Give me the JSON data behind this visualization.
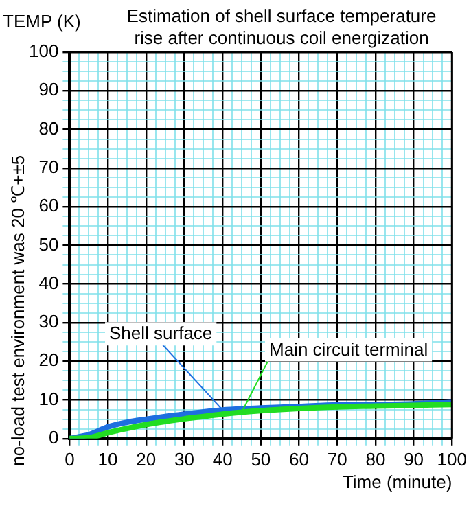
{
  "chart_data": {
    "type": "line",
    "title": [
      "Estimation of shell surface temperature",
      "rise after continuous coil energization"
    ],
    "ylabel": "TEMP (K)",
    "xlabel": "Time (minute)",
    "annotations": [
      "no-load test environment was 20 ℃+±5"
    ],
    "x": [
      0,
      5,
      10,
      15,
      20,
      25,
      30,
      35,
      40,
      45,
      50,
      60,
      70,
      80,
      90,
      100
    ],
    "series": [
      {
        "name": "Shell surface",
        "color": "#1e6fe0",
        "values": [
          0,
          1,
          3,
          4.2,
          5,
          5.7,
          6.3,
          6.9,
          7.4,
          7.7,
          7.9,
          8.3,
          8.7,
          8.8,
          9,
          9.5
        ]
      },
      {
        "name": "Main circuit terminal",
        "color": "#22dd22",
        "values": [
          0,
          0.2,
          1.5,
          2.6,
          3.6,
          4.4,
          5.1,
          5.7,
          6.3,
          6.8,
          7.2,
          7.8,
          8.2,
          8.4,
          8.6,
          8.8
        ]
      }
    ],
    "xlim": [
      0,
      100
    ],
    "ylim": [
      0,
      100
    ],
    "xticks": [
      0,
      {
        "value": 2.5,
        "label": null
      },
      {
        "value": 5,
        "label": null
      },
      {
        "value": 7.5,
        "label": null
      },
      10,
      {
        "value": 12.5,
        "label": null
      },
      {
        "value": 15,
        "label": null
      },
      {
        "value": 17.5,
        "label": null
      },
      20,
      {
        "value": 22.5,
        "label": null
      },
      {
        "value": 25,
        "label": null
      },
      {
        "value": 27.5,
        "label": null
      },
      30,
      {
        "value": 32.5,
        "label": null
      },
      {
        "value": 35,
        "label": null
      },
      {
        "value": 37.5,
        "label": null
      },
      40,
      {
        "value": 42.5,
        "label": null
      },
      {
        "value": 45,
        "label": null
      },
      {
        "value": 47.5,
        "label": null
      },
      50,
      {
        "value": 52.5,
        "label": null
      },
      {
        "value": 55,
        "label": null
      },
      {
        "value": 57.5,
        "label": null
      },
      60,
      {
        "value": 62.5,
        "label": null
      },
      {
        "value": 65,
        "label": null
      },
      {
        "value": 67.5,
        "label": null
      },
      70,
      {
        "value": 72.5,
        "label": null
      },
      {
        "value": 75,
        "label": null
      },
      {
        "value": 77.5,
        "label": null
      },
      80,
      {
        "value": 82.5,
        "label": null
      },
      {
        "value": 85,
        "label": null
      },
      {
        "value": 87.5,
        "label": null
      },
      90,
      {
        "value": 92.5,
        "label": null
      },
      {
        "value": 95,
        "label": null
      },
      {
        "value": 97.5,
        "label": null
      },
      100
    ],
    "yticks": [
      0,
      {
        "value": 2.5,
        "label": null
      },
      {
        "value": 5,
        "label": null
      },
      {
        "value": 7.5,
        "label": null
      },
      10,
      {
        "value": 12.5,
        "label": null
      },
      {
        "value": 15,
        "label": null
      },
      {
        "value": 17.5,
        "label": null
      },
      20,
      {
        "value": 22.5,
        "label": null
      },
      {
        "value": 25,
        "label": null
      },
      {
        "value": 27.5,
        "label": null
      },
      30,
      {
        "value": 32.5,
        "label": null
      },
      {
        "value": 35,
        "label": null
      },
      {
        "value": 37.5,
        "label": null
      },
      40,
      {
        "value": 42.5,
        "label": null
      },
      {
        "value": 45,
        "label": null
      },
      {
        "value": 47.5,
        "label": null
      },
      50,
      {
        "value": 52.5,
        "label": null
      },
      {
        "value": 55,
        "label": null
      },
      {
        "value": 57.5,
        "label": null
      },
      60,
      {
        "value": 62.5,
        "label": null
      },
      {
        "value": 65,
        "label": null
      },
      {
        "value": 67.5,
        "label": null
      },
      70,
      {
        "value": 72.5,
        "label": null
      },
      {
        "value": 75,
        "label": null
      },
      {
        "value": 77.5,
        "label": null
      },
      80,
      {
        "value": 82.5,
        "label": null
      },
      {
        "value": 85,
        "label": null
      },
      {
        "value": 87.5,
        "label": null
      },
      90,
      {
        "value": 92.5,
        "label": null
      },
      {
        "value": 95,
        "label": null
      },
      {
        "value": 97.5,
        "label": null
      },
      100
    ],
    "grid": true,
    "legend": false,
    "marker": "none",
    "line_style": "solid"
  }
}
